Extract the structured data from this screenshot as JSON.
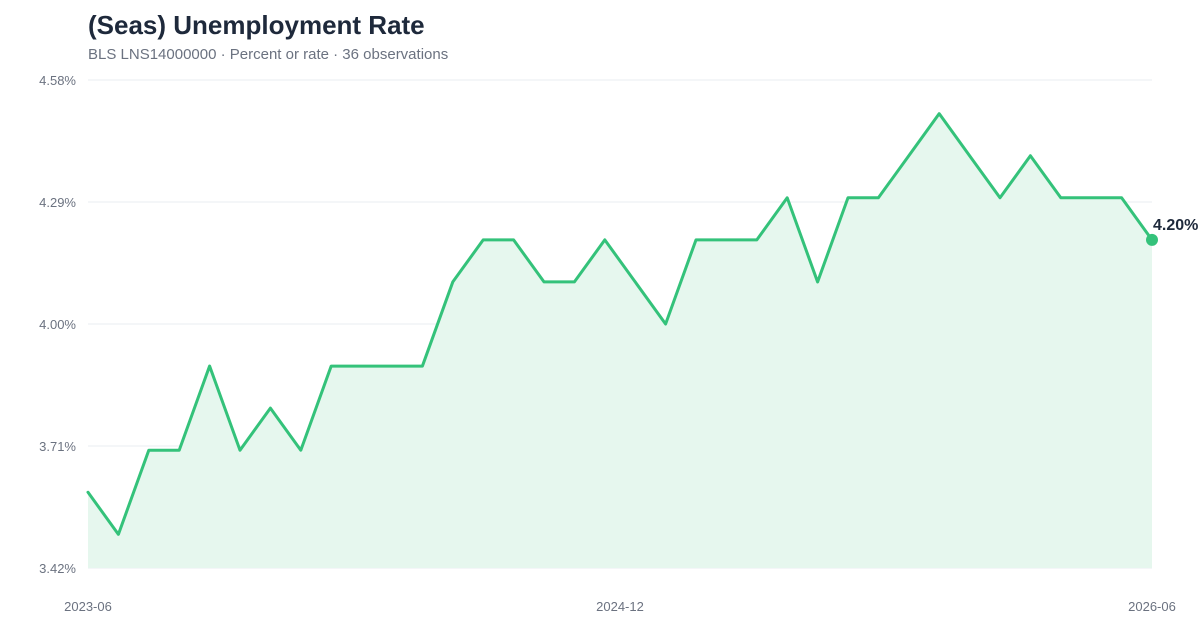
{
  "header": {
    "title": "(Seas) Unemployment Rate",
    "subtitle": "BLS LNS14000000 · Percent or rate · 36 observations"
  },
  "chart_data": {
    "type": "area",
    "title": "(Seas) Unemployment Rate",
    "subtitle": "BLS LNS14000000 · Percent or rate · 36 observations",
    "xlabel": "",
    "ylabel": "",
    "ylim": [
      3.42,
      4.58
    ],
    "y_ticks": [
      "4.58%",
      "4.29%",
      "4.00%",
      "3.71%",
      "3.42%"
    ],
    "y_tick_values": [
      4.58,
      4.29,
      4.0,
      3.71,
      3.42
    ],
    "x_ticks": [
      "2023-06",
      "2024-12",
      "2026-06"
    ],
    "grid": true,
    "line_color": "#34c27a",
    "fill_color": "#e6f7ee",
    "x": [
      "2023-06",
      "2023-07",
      "2023-08",
      "2023-09",
      "2023-10",
      "2023-11",
      "2023-12",
      "2024-01",
      "2024-02",
      "2024-03",
      "2024-04",
      "2024-05",
      "2024-06",
      "2024-07",
      "2024-08",
      "2024-09",
      "2024-10",
      "2024-11",
      "2024-12",
      "2025-01",
      "2025-02",
      "2025-03",
      "2025-04",
      "2025-05",
      "2025-06",
      "2025-07",
      "2025-08",
      "2025-09",
      "2025-10",
      "2025-11",
      "2025-12",
      "2026-01",
      "2026-02",
      "2026-03",
      "2026-04",
      "2026-05",
      "2026-06"
    ],
    "series": [
      {
        "values": [
          3.6,
          3.5,
          3.7,
          3.7,
          3.9,
          3.7,
          3.8,
          3.7,
          3.9,
          3.9,
          3.9,
          3.9,
          4.1,
          4.2,
          4.2,
          4.1,
          4.1,
          4.2,
          null,
          4.0,
          4.2,
          4.2,
          4.2,
          4.3,
          4.1,
          4.3,
          4.3,
          null,
          4.5,
          null,
          4.3,
          4.4,
          4.3,
          4.3,
          4.3,
          4.2,
          null
        ]
      }
    ],
    "end_label": "4.20%"
  }
}
